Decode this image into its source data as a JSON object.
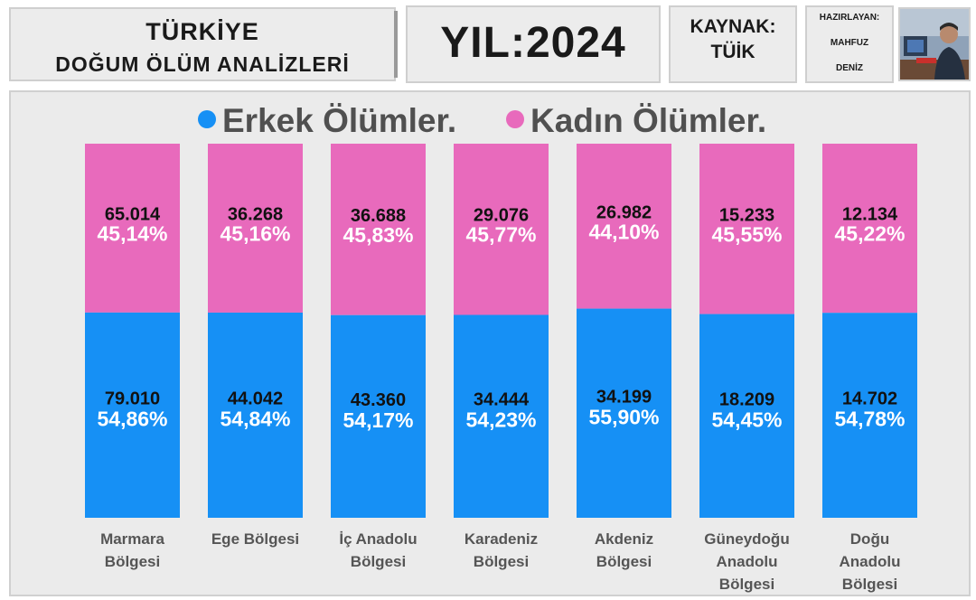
{
  "header": {
    "title_line1": "TÜRKİYE",
    "title_line2": "DOĞUM ÖLÜM ANALİZLERİ",
    "year_label": "YIL:2024",
    "source_label": "KAYNAK:",
    "source_value": "TÜİK",
    "author_label": "HAZIRLAYAN:",
    "author_first": "MAHFUZ",
    "author_last": "DENİZ"
  },
  "colors": {
    "male": "#1690f5",
    "female": "#e86abc",
    "header_bg": "#ececec",
    "panel_bg": "#ebebeb"
  },
  "chart_data": {
    "type": "bar",
    "stacked": true,
    "normalized": true,
    "legend_position": "top",
    "categories": [
      [
        "Marmara",
        "Bölgesi"
      ],
      [
        "Ege Bölgesi"
      ],
      [
        "İç Anadolu",
        "Bölgesi"
      ],
      [
        "Karadeniz",
        "Bölgesi"
      ],
      [
        "Akdeniz",
        "Bölgesi"
      ],
      [
        "Güneydoğu",
        "Anadolu",
        "Bölgesi"
      ],
      [
        "Doğu",
        "Anadolu",
        "Bölgesi"
      ]
    ],
    "series": [
      {
        "name": "Erkek Ölümler.",
        "color": "#1690f5",
        "values": [
          79010,
          44042,
          43360,
          34444,
          34199,
          18209,
          14702
        ],
        "value_labels": [
          "79.010",
          "44.042",
          "43.360",
          "34.444",
          "34.199",
          "18.209",
          "14.702"
        ],
        "percent": [
          54.86,
          54.84,
          54.17,
          54.23,
          55.9,
          54.45,
          54.78
        ],
        "percent_labels": [
          "54,86%",
          "54,84%",
          "54,17%",
          "54,23%",
          "55,90%",
          "54,45%",
          "54,78%"
        ]
      },
      {
        "name": "Kadın Ölümler.",
        "color": "#e86abc",
        "values": [
          65014,
          36268,
          36688,
          29076,
          26982,
          15233,
          12134
        ],
        "value_labels": [
          "65.014",
          "36.268",
          "36.688",
          "29.076",
          "26.982",
          "15.233",
          "12.134"
        ],
        "percent": [
          45.14,
          45.16,
          45.83,
          45.77,
          44.1,
          45.55,
          45.22
        ],
        "percent_labels": [
          "45,14%",
          "45,16%",
          "45,83%",
          "45,77%",
          "44,10%",
          "45,55%",
          "45,22%"
        ]
      }
    ]
  }
}
